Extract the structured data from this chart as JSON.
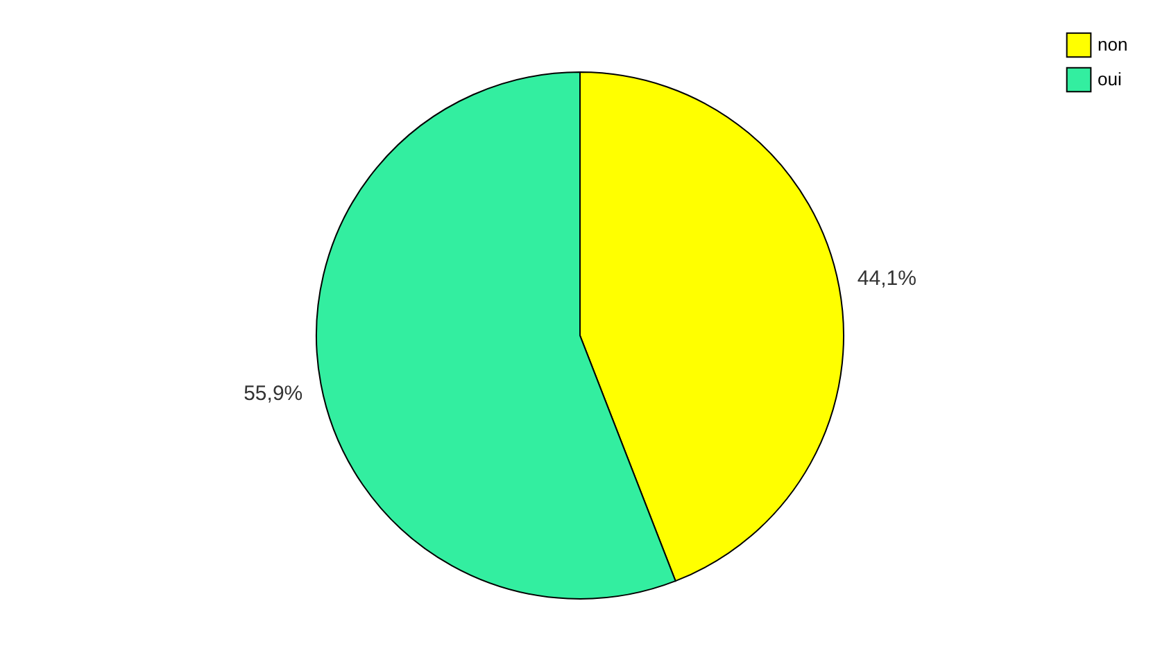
{
  "chart_data": {
    "type": "pie",
    "categories": [
      "non",
      "oui"
    ],
    "values": [
      44.1,
      55.9
    ],
    "colors": [
      "#ffff00",
      "#33eea0"
    ],
    "value_labels": [
      "44,1%",
      "55,9%"
    ],
    "legend": "top right"
  }
}
